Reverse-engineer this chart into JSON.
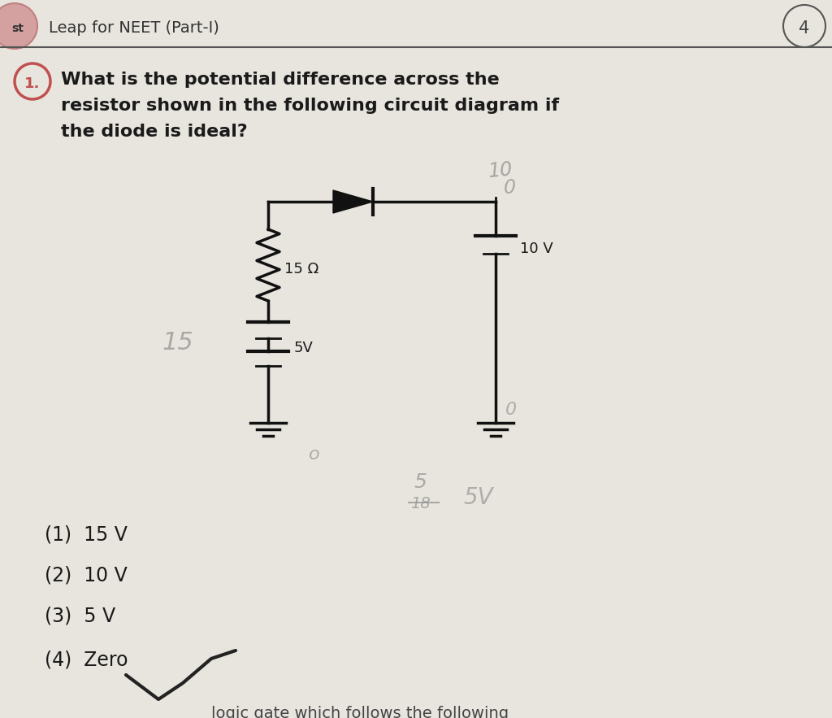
{
  "bg_color": "#d8d5ce",
  "paper_color": "#e8e5de",
  "header_text": "Leap for NEET (Part-I)",
  "question_text_line1": "What is the potential difference across the",
  "question_text_line2": "resistor shown in the following circuit diagram if",
  "question_text_line3": "the diode is ideal?",
  "options": [
    "(1)  15 V",
    "(2)  10 V",
    "(3)  5 V",
    "(4)  Zero"
  ],
  "footer_text": "logic gate which follows the following",
  "resistor_label": "15 Ω",
  "battery1_label": "5V",
  "battery2_label": "10 V",
  "text_color": "#1a1a1a",
  "circuit_color": "#111111",
  "handwrite_color": "#888888"
}
